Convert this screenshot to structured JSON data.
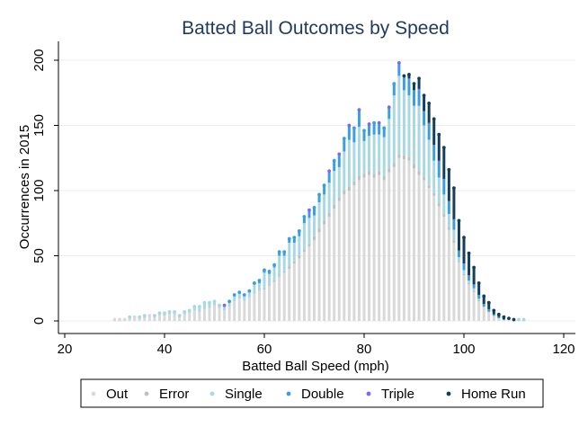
{
  "chart_data": {
    "type": "bar",
    "title": "Batted Ball Outcomes by Speed",
    "xlabel": "Batted Ball Speed (mph)",
    "ylabel": "Occurrences in 2015",
    "xlim": [
      20,
      120
    ],
    "ylim": [
      0,
      210
    ],
    "xticks": [
      20,
      40,
      60,
      80,
      100,
      120
    ],
    "yticks": [
      0,
      50,
      100,
      150,
      200
    ],
    "grid": true,
    "stacked": true,
    "legend_position": "bottom",
    "series_colors": {
      "Out": "#d9d9d9",
      "Error": "#bfbfbf",
      "Single": "#a9d8e3",
      "Double": "#3a9ee3",
      "Triple": "#7b68ee",
      "Home Run": "#133f5c"
    },
    "series": [
      {
        "name": "Out",
        "values": [
          1,
          1,
          1,
          2,
          3,
          2,
          2,
          4,
          3,
          5,
          4,
          5,
          5,
          3,
          5,
          6,
          8,
          7,
          9,
          10,
          12,
          10,
          8,
          11,
          15,
          17,
          15,
          18,
          21,
          23,
          24,
          27,
          30,
          34,
          37,
          40,
          44,
          48,
          53,
          57,
          62,
          68,
          74,
          80,
          86,
          92,
          97,
          100,
          104,
          108,
          110,
          112,
          110,
          112,
          108,
          114,
          118,
          125,
          124,
          123,
          117,
          112,
          108,
          102,
          96,
          88,
          80,
          70,
          60,
          45,
          35,
          28,
          22,
          15,
          10,
          7,
          4,
          2,
          1,
          1,
          0,
          0,
          0
        ]
      },
      {
        "name": "Error",
        "values": [
          0,
          0,
          0,
          0,
          0,
          0,
          0,
          0,
          0,
          0,
          0,
          0,
          0,
          0,
          0,
          0,
          0,
          0,
          0,
          0,
          0,
          0,
          0,
          0,
          0,
          0,
          0,
          0,
          0,
          0,
          1,
          1,
          1,
          1,
          1,
          2,
          2,
          2,
          2,
          2,
          3,
          3,
          3,
          3,
          3,
          3,
          3,
          3,
          3,
          3,
          3,
          3,
          3,
          3,
          3,
          3,
          3,
          3,
          3,
          3,
          3,
          3,
          2,
          2,
          2,
          2,
          2,
          2,
          2,
          1,
          1,
          1,
          1,
          1,
          0,
          0,
          0,
          0,
          0,
          0,
          0,
          0,
          0
        ]
      },
      {
        "name": "Single",
        "values": [
          0,
          0,
          0,
          1,
          0,
          1,
          2,
          0,
          1,
          1,
          2,
          2,
          2,
          1,
          2,
          2,
          3,
          4,
          5,
          4,
          3,
          2,
          3,
          3,
          4,
          4,
          4,
          4,
          7,
          6,
          12,
          8,
          10,
          15,
          12,
          18,
          14,
          15,
          20,
          20,
          16,
          20,
          20,
          23,
          26,
          23,
          30,
          36,
          30,
          38,
          25,
          27,
          30,
          28,
          30,
          38,
          52,
          60,
          50,
          47,
          45,
          50,
          40,
          35,
          25,
          20,
          15,
          10,
          8,
          3,
          3,
          2,
          2,
          1,
          1,
          0,
          0,
          0,
          0,
          0,
          0,
          1,
          1
        ]
      },
      {
        "name": "Double",
        "values": [
          0,
          0,
          0,
          0,
          0,
          0,
          0,
          0,
          0,
          0,
          0,
          0,
          0,
          0,
          0,
          0,
          0,
          0,
          0,
          0,
          0,
          0,
          0,
          1,
          1,
          1,
          1,
          1,
          1,
          2,
          2,
          2,
          2,
          3,
          3,
          3,
          4,
          4,
          5,
          5,
          6,
          6,
          7,
          8,
          8,
          9,
          10,
          10,
          11,
          12,
          8,
          8,
          9,
          8,
          7,
          8,
          9,
          9,
          10,
          12,
          12,
          12,
          11,
          12,
          12,
          12,
          12,
          10,
          8,
          5,
          5,
          4,
          3,
          3,
          2,
          2,
          1,
          1,
          0,
          0,
          0,
          0,
          0
        ]
      },
      {
        "name": "Triple",
        "values": [
          0,
          0,
          0,
          0,
          0,
          0,
          0,
          0,
          0,
          0,
          0,
          0,
          0,
          0,
          0,
          0,
          0,
          0,
          0,
          0,
          0,
          0,
          1,
          0,
          0,
          0,
          0,
          0,
          0,
          0,
          0,
          0,
          0,
          0,
          0,
          0,
          0,
          0,
          0,
          1,
          0,
          0,
          0,
          1,
          0,
          1,
          0,
          1,
          0,
          1,
          0,
          1,
          0,
          1,
          0,
          1,
          0,
          1,
          0,
          1,
          0,
          1,
          0,
          1,
          0,
          1,
          0,
          0,
          0,
          0,
          0,
          0,
          0,
          0,
          0,
          0,
          0,
          0,
          0,
          0,
          0,
          0,
          0
        ]
      },
      {
        "name": "Home Run",
        "values": [
          0,
          0,
          0,
          0,
          0,
          0,
          0,
          0,
          0,
          0,
          0,
          0,
          0,
          0,
          0,
          0,
          0,
          0,
          0,
          0,
          0,
          0,
          0,
          0,
          0,
          0,
          0,
          0,
          0,
          0,
          0,
          0,
          0,
          0,
          0,
          0,
          0,
          0,
          0,
          0,
          0,
          0,
          0,
          0,
          0,
          0,
          0,
          0,
          0,
          0,
          0,
          0,
          0,
          0,
          0,
          0,
          0,
          0,
          1,
          3,
          5,
          8,
          12,
          15,
          20,
          20,
          24,
          24,
          24,
          23,
          20,
          17,
          13,
          9,
          6,
          5,
          3,
          2,
          2,
          1,
          1,
          0,
          0
        ]
      }
    ],
    "x": [
      30,
      31,
      32,
      33,
      34,
      35,
      36,
      37,
      38,
      39,
      40,
      41,
      42,
      43,
      44,
      45,
      46,
      47,
      48,
      49,
      50,
      51,
      52,
      53,
      54,
      55,
      56,
      57,
      58,
      59,
      60,
      61,
      62,
      63,
      64,
      65,
      66,
      67,
      68,
      69,
      70,
      71,
      72,
      73,
      74,
      75,
      76,
      77,
      78,
      79,
      80,
      81,
      82,
      83,
      84,
      85,
      86,
      87,
      88,
      89,
      90,
      91,
      92,
      93,
      94,
      95,
      96,
      97,
      98,
      99,
      100,
      101,
      102,
      103,
      104,
      105,
      106,
      107,
      108,
      109,
      110,
      111,
      112
    ]
  }
}
